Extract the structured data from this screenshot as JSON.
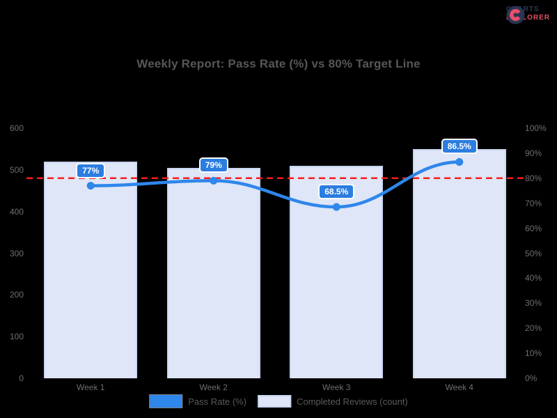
{
  "logo": {
    "line1": "CHARTS",
    "line2": "EXPLORER"
  },
  "header": {
    "title": "Weekly Report: Pass Rate (%) vs 80% Target Line"
  },
  "legend": {
    "items": [
      {
        "label": "Pass Rate (%)",
        "swatch_color": "#2f86eb"
      },
      {
        "label": "Completed Reviews (count)",
        "swatch_color": "#dfe7f8"
      }
    ]
  },
  "colors": {
    "background": "#000000",
    "line": "#2f86eb",
    "marker": "#2f86eb",
    "tooltip_bg": "#2b7de0",
    "tooltip_text": "#ffffff",
    "bar_fill": "#dee6f7",
    "bar_border": "#c9d6f2",
    "target_line": "#ff1a1a",
    "tick_text": "#6f6f6f",
    "title_text": "#575757"
  },
  "chart_data": {
    "type": "bar",
    "subtype": "bar-and-line-dual-axis",
    "title": "Weekly Report: Pass Rate (%) vs 80% Target Line",
    "categories": [
      "Week 1",
      "Week 2",
      "Week 3",
      "Week 4"
    ],
    "series": [
      {
        "name": "Pass Rate (%)",
        "type": "line",
        "axis": "right",
        "values": [
          77,
          79,
          68.5,
          86.5
        ],
        "point_labels": [
          "77%",
          "79%",
          "68.5%",
          "86.5%"
        ],
        "color": "#2f86eb"
      },
      {
        "name": "Completed Reviews (count)",
        "type": "bar",
        "axis": "left",
        "values": [
          520,
          505,
          510,
          550
        ],
        "color": "#dee6f7"
      }
    ],
    "target_line": {
      "value": 80,
      "axis": "right",
      "style": "dashed",
      "color": "#ff1a1a"
    },
    "left_axis": {
      "min": 0,
      "max": 600,
      "tick_step": 100,
      "ticks": [
        "600",
        "500",
        "400",
        "300",
        "200",
        "100",
        "0"
      ]
    },
    "right_axis": {
      "min": 0,
      "max": 100,
      "tick_step": 10,
      "ticks": [
        "100%",
        "90%",
        "80%",
        "70%",
        "60%",
        "50%",
        "40%",
        "30%",
        "20%",
        "10%",
        "0%"
      ]
    },
    "grid": false,
    "legend_position": "bottom"
  }
}
